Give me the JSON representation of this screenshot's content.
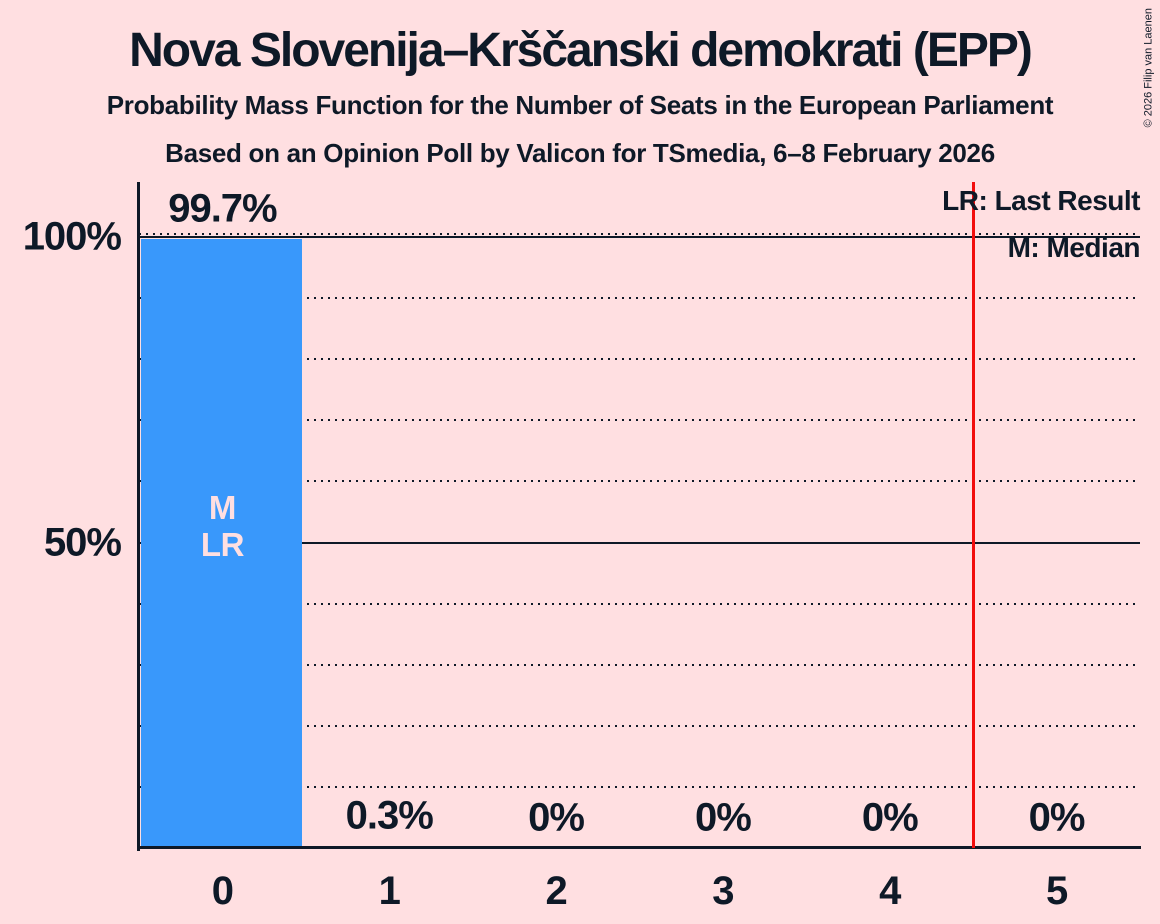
{
  "header": {
    "title": "Nova Slovenija–Krščanski demokrati (EPP)",
    "subtitle": "Probability Mass Function for the Number of Seats in the European Parliament",
    "poll_details": "Based on an Opinion Poll by Valicon for TSmedia, 6–8 February 2026"
  },
  "copyright": "© 2026 Filip van Laenen",
  "legend": {
    "last_result": "LR: Last Result",
    "median": "M: Median"
  },
  "colors": {
    "background": "#FFDFE1",
    "ink": "#0E1927",
    "bar": "#3998FB",
    "bar_annotation": "#FFDFE1",
    "red_line": "#F20D0D"
  },
  "chart_data": {
    "type": "bar",
    "title": "Nova Slovenija–Krščanski demokrati (EPP)",
    "categories": [
      "0",
      "1",
      "2",
      "3",
      "4",
      "5"
    ],
    "values": [
      99.7,
      0.3,
      0,
      0,
      0,
      0
    ],
    "value_labels": [
      "99.7%",
      "0.3%",
      "0%",
      "0%",
      "0%",
      "0%"
    ],
    "y_ticks": [
      {
        "value": 100,
        "label": "100%"
      },
      {
        "value": 50,
        "label": "50%"
      }
    ],
    "ylim": [
      0,
      109
    ],
    "grid": "dotted horizontal lines every 10%, solid lines at 50% and 100%",
    "legend_position": "top-right",
    "annotations": {
      "median_bar": "0",
      "last_result_bar": "0",
      "bar_label_lines": [
        "M",
        "LR"
      ],
      "red_vline_at": 4.5
    }
  }
}
